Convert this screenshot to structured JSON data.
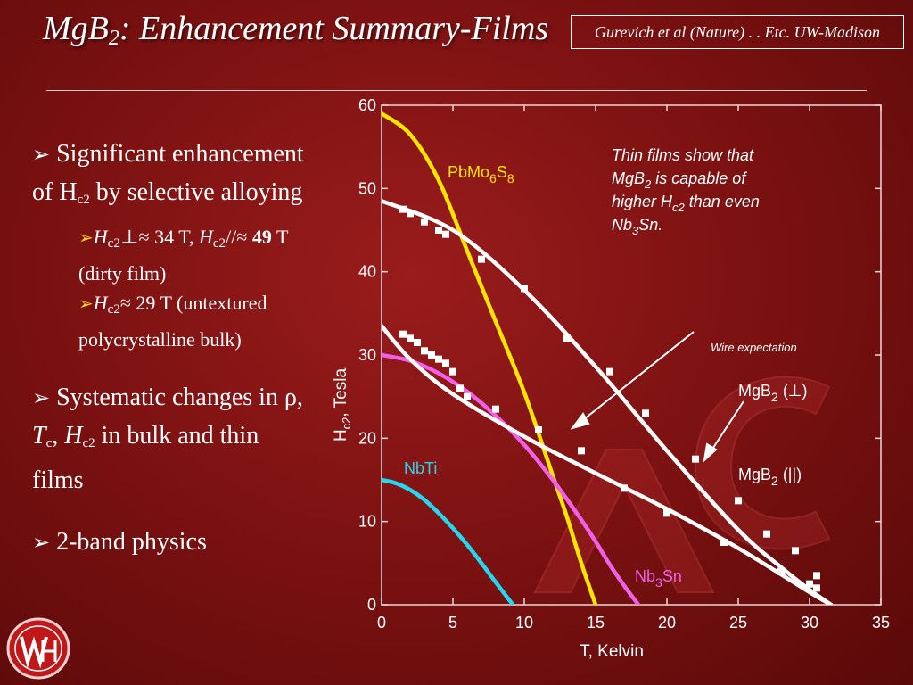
{
  "slide": {
    "title": "MgB",
    "title_sub": "2",
    "title_rest": ": Enhancement Summary-Films",
    "reference": "Gurevich et al (Nature) . . Etc. UW-Madison"
  },
  "bullets": {
    "b1_text": "Significant enhancement of H",
    "b1_sub": "c2",
    "b1_tail": "by selective alloying",
    "s1_h": "H",
    "s1_sub": "c2",
    "s1_a": "⊥≈ 34 T, ",
    "s1_h2": "H",
    "s1_sub2": "c2",
    "s1_b": "//≈",
    "s1_bold": "49",
    "s1_c": " T (dirty film)",
    "s2_h": "H",
    "s2_sub": "c2",
    "s2_a": "≈ 29 T (untextured polycrystalline bulk)",
    "b2_a": "Systematic changes in ρ, ",
    "b2_t": "T",
    "b2_tsub": "c",
    "b2_comma": ", ",
    "b2_h": "H",
    "b2_hsub": "c2",
    "b2_b": " in bulk and thin films",
    "b3": "2-band physics"
  },
  "chart_data": {
    "type": "line",
    "xlabel": "T, Kelvin",
    "ylabel": "H",
    "ylabel_sub": "c2",
    "ylabel_tail": ", Tesla",
    "xlim": [
      0,
      35
    ],
    "ylim": [
      0,
      60
    ],
    "xticks": [
      0,
      5,
      10,
      15,
      20,
      25,
      30,
      35
    ],
    "yticks": [
      0,
      10,
      20,
      30,
      40,
      50,
      60
    ],
    "grid": false,
    "series": [
      {
        "name": "PbMo",
        "name_sub": "6",
        "name_mid": "S",
        "name_sub2": "8",
        "color": "#ffe600",
        "x": [
          0,
          2,
          4,
          6,
          8,
          10,
          12,
          13,
          14,
          15
        ],
        "y": [
          59,
          56.5,
          51,
          42.5,
          34,
          25.5,
          15.5,
          10.5,
          5,
          0
        ]
      },
      {
        "name": "NbTi",
        "color": "#22d8f0",
        "x": [
          0,
          1,
          2,
          3,
          4,
          5,
          6,
          7,
          8,
          9.2
        ],
        "y": [
          15,
          14.6,
          13.8,
          12.6,
          11,
          9.2,
          7.2,
          5,
          2.7,
          0
        ]
      },
      {
        "name": "Nb",
        "name_sub": "3",
        "name_mid": "Sn",
        "color": "#f060e8",
        "x": [
          0,
          2,
          4,
          6,
          8,
          10,
          12,
          14,
          15,
          16,
          17,
          18
        ],
        "y": [
          30,
          29.3,
          27.8,
          25.6,
          22.7,
          19.2,
          15,
          10.2,
          7.6,
          4.8,
          2.3,
          0
        ]
      },
      {
        "name": "MgB",
        "name_sub": "2",
        "name_mid": " (||)",
        "color": "#ffffff",
        "x": [
          0,
          5,
          10,
          15,
          20,
          25,
          28,
          30,
          31.5
        ],
        "y": [
          48.5,
          45,
          37.8,
          28.6,
          18.5,
          9,
          4.5,
          1.8,
          0
        ]
      },
      {
        "name": "MgB",
        "name_sub": "2",
        "name_mid": " (⊥)",
        "color": "#ffffff",
        "x": [
          0,
          2,
          5,
          10,
          15,
          20,
          25,
          30,
          31.5
        ],
        "y": [
          33.5,
          29.5,
          25.3,
          20.2,
          15.8,
          11.5,
          6.8,
          1.5,
          0
        ]
      }
    ],
    "points_parallel": {
      "x": [
        1.5,
        2,
        3,
        4,
        4.5,
        7,
        10,
        13,
        16,
        18.5,
        22,
        25,
        27,
        29,
        30.5,
        30
      ],
      "y": [
        47.5,
        47,
        46,
        45,
        44.5,
        41.5,
        38,
        32,
        28,
        23,
        17.5,
        12.5,
        8.5,
        6.5,
        3.5,
        2.5
      ]
    },
    "points_perp": {
      "x": [
        1.5,
        2,
        2.5,
        3,
        3.5,
        4,
        4.5,
        5,
        5.5,
        6,
        8,
        11,
        14,
        17,
        20,
        24,
        28,
        30.5
      ],
      "y": [
        32.5,
        32,
        31.5,
        30.5,
        30,
        29.5,
        29,
        28,
        26,
        25,
        23.5,
        21,
        18.5,
        14,
        11,
        7.5,
        4,
        2
      ]
    },
    "annotations": {
      "note_l1": "Thin films show that",
      "note_l2a": "MgB",
      "note_l2sub": "2",
      "note_l2b": " is capable of",
      "note_l3a": "higher H",
      "note_l3sub": "c2",
      "note_l3b": " than even",
      "note_l4a": "Nb",
      "note_l4sub": "3",
      "note_l4b": "Sn.",
      "wire": "Wire expectation"
    }
  },
  "colors": {
    "background": "#7e1212",
    "title": "#ffffff",
    "sub_bullet_arrow": "#ffd21a"
  }
}
